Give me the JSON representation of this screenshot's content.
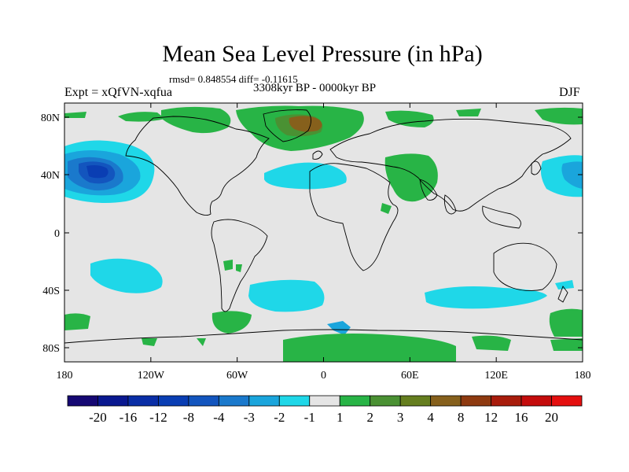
{
  "title": "Mean Sea Level Pressure (in hPa)",
  "stats_line": "rmsd= 0.848554  diff= -0.11615",
  "experiment": "Expt = xQfVN-xqfua",
  "period": "3308kyr BP - 0000kyr BP",
  "season": "DJF",
  "axes": {
    "x_ticks": [
      "180",
      "120W",
      "60W",
      "0",
      "60E",
      "120E",
      "180"
    ],
    "y_ticks": [
      "80N",
      "40N",
      "0",
      "40S",
      "80S"
    ]
  },
  "colorbar": {
    "labels": [
      "-20",
      "-16",
      "-12",
      "-8",
      "-4",
      "-3",
      "-2",
      "-1",
      "1",
      "2",
      "3",
      "4",
      "8",
      "12",
      "16",
      "20"
    ],
    "colors": [
      "#150873",
      "#0a1890",
      "#0a2ea6",
      "#0a3eb3",
      "#1355be",
      "#1a79cc",
      "#1aa5dc",
      "#1fd7e8",
      "#e5e5e5",
      "#28b446",
      "#4a9133",
      "#657e1f",
      "#86601c",
      "#8e3a10",
      "#a81c0c",
      "#c40c0c",
      "#e40f0f"
    ]
  },
  "map": {
    "background_color": "#e5e5e5",
    "land_outline_color": "#000000"
  }
}
